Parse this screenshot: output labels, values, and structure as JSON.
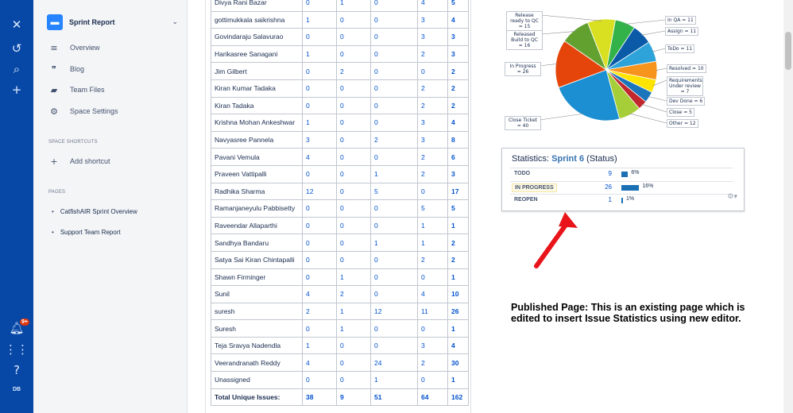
{
  "rail": {
    "notification_count": "9+",
    "avatar_initials": "DB"
  },
  "space": {
    "name": "Sprint Report"
  },
  "sidebar": {
    "items": [
      {
        "label": "Overview",
        "icon": "overview-icon"
      },
      {
        "label": "Blog",
        "icon": "blog-icon"
      },
      {
        "label": "Team Files",
        "icon": "folder-icon"
      },
      {
        "label": "Space Settings",
        "icon": "gear-icon"
      }
    ],
    "shortcuts_label": "SPACE SHORTCUTS",
    "add_shortcut": "Add shortcut",
    "pages_label": "PAGES",
    "pages": [
      "CatfishAIR Sprint Overview",
      "Support Team Report"
    ]
  },
  "table": {
    "rows": [
      [
        "Divya Rani Bazar",
        "0",
        "1",
        "0",
        "4",
        "5"
      ],
      [
        "gottimukkala saikrishna",
        "1",
        "0",
        "0",
        "3",
        "4"
      ],
      [
        "Govindaraju Salavurao",
        "0",
        "0",
        "0",
        "3",
        "3"
      ],
      [
        "Harikasree Sanagani",
        "1",
        "0",
        "0",
        "2",
        "3"
      ],
      [
        "Jim Gilbert",
        "0",
        "2",
        "0",
        "0",
        "2"
      ],
      [
        "Kiran Kumar Tadaka",
        "0",
        "0",
        "0",
        "2",
        "2"
      ],
      [
        "Kiran Tadaka",
        "0",
        "0",
        "0",
        "2",
        "2"
      ],
      [
        "Krishna Mohan Ankeshwar",
        "1",
        "0",
        "0",
        "3",
        "4"
      ],
      [
        "Navyasree Pannela",
        "3",
        "0",
        "2",
        "3",
        "8"
      ],
      [
        "Pavani Vemula",
        "4",
        "0",
        "0",
        "2",
        "6"
      ],
      [
        "Praveen Vattipalli",
        "0",
        "0",
        "1",
        "2",
        "3"
      ],
      [
        "Radhika Sharma",
        "12",
        "0",
        "5",
        "0",
        "17"
      ],
      [
        "Ramanjaneyulu Pabbisetty",
        "0",
        "0",
        "0",
        "5",
        "5"
      ],
      [
        "Raveendar Allaparthi",
        "0",
        "0",
        "0",
        "1",
        "1"
      ],
      [
        "Sandhya Bandaru",
        "0",
        "0",
        "1",
        "1",
        "2"
      ],
      [
        "Satya Sai Kiran Chintapalli",
        "0",
        "0",
        "0",
        "2",
        "2"
      ],
      [
        "Shawn Firminger",
        "0",
        "1",
        "0",
        "0",
        "1"
      ],
      [
        "Sunil",
        "4",
        "2",
        "0",
        "4",
        "10"
      ],
      [
        "suresh",
        "2",
        "1",
        "12",
        "11",
        "26"
      ],
      [
        "Suresh",
        "0",
        "1",
        "0",
        "0",
        "1"
      ],
      [
        "Teja Sravya Nadendla",
        "1",
        "0",
        "0",
        "3",
        "4"
      ],
      [
        "Veerandranath Reddy",
        "4",
        "0",
        "24",
        "2",
        "30"
      ],
      [
        "Unassigned",
        "0",
        "0",
        "1",
        "0",
        "1"
      ]
    ],
    "total": [
      "Total Unique Issues:",
      "38",
      "9",
      "51",
      "64",
      "162"
    ]
  },
  "pie": {
    "slices": [
      {
        "label": "In QA = 11",
        "value": 11,
        "color": "#33b24a"
      },
      {
        "label": "Assign = 11",
        "value": 11,
        "color": "#0a5aa8"
      },
      {
        "label": "ToDo = 11",
        "value": 11,
        "color": "#2ea3d9"
      },
      {
        "label": "Resolved = 10",
        "value": 10,
        "color": "#f7941d"
      },
      {
        "label": "Requirements Under review = 7",
        "value": 7,
        "color": "#ffe400"
      },
      {
        "label": "Dev Done = 6",
        "value": 6,
        "color": "#1b75bb"
      },
      {
        "label": "Close = 5",
        "value": 5,
        "color": "#c1272d"
      },
      {
        "label": "Other = 12",
        "value": 12,
        "color": "#a6ce39"
      },
      {
        "label": "Close Ticket = 40",
        "value": 40,
        "color": "#1b8fd2"
      },
      {
        "label": "In Progress = 26",
        "value": 26,
        "color": "#e5450a"
      },
      {
        "label": "Released Build to QC = 16",
        "value": 16,
        "color": "#62a030"
      },
      {
        "label": "Release ready to QC = 15",
        "value": 15,
        "color": "#d9e021"
      }
    ]
  },
  "stats": {
    "title_prefix": "Statistics:",
    "sprint": "Sprint 6",
    "title_suffix": "(Status)",
    "rows": [
      {
        "label": "TODO",
        "count": "9",
        "pct": "6%",
        "fraction": 0.06
      },
      {
        "label": "IN PROGRESS",
        "count": "26",
        "pct": "16%",
        "fraction": 0.16
      },
      {
        "label": "REOPEN",
        "count": "1",
        "pct": "1%",
        "fraction": 0.01
      }
    ]
  },
  "note": "Published Page: This is an existing page which is edited to insert Issue Statistics using new editor."
}
